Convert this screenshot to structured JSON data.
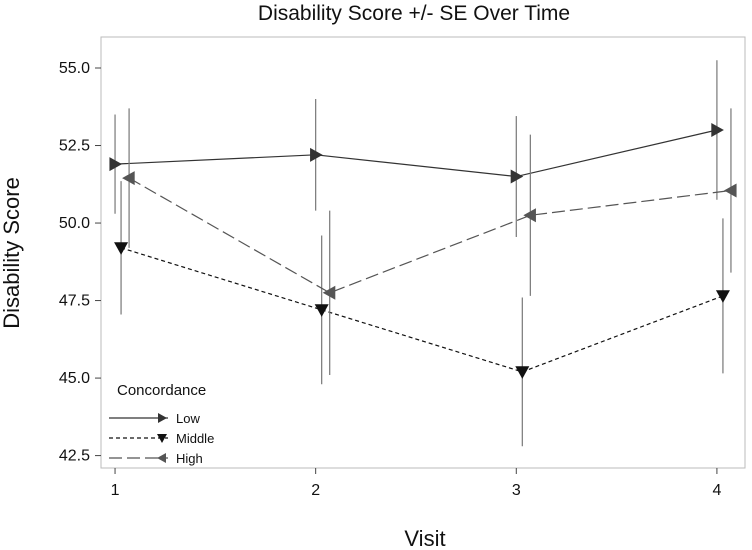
{
  "chart_data": {
    "type": "line",
    "title": "Disability Score +/- SE Over Time",
    "xlabel": "Visit",
    "ylabel": "Disability Score",
    "categories": [
      "1",
      "2",
      "3",
      "4"
    ],
    "x": [
      1,
      2,
      3,
      4
    ],
    "xlim": [
      0.93,
      4.14
    ],
    "ylim": [
      42.1,
      56.0
    ],
    "yticks": [
      42.5,
      45.0,
      47.5,
      50.0,
      52.5,
      55.0
    ],
    "ytick_labels": [
      "42.5",
      "45.0",
      "47.5",
      "50.0",
      "52.5",
      "55.0"
    ],
    "grid": false,
    "legend": {
      "title": "Concordance",
      "position": "bottom-left"
    },
    "series": [
      {
        "name": "Low",
        "marker": "triangle-right",
        "line_style": "solid",
        "color": "#333333",
        "x_offset": 0.0,
        "values": [
          51.9,
          52.2,
          51.5,
          53.0
        ],
        "se": [
          1.6,
          1.8,
          1.95,
          2.25
        ]
      },
      {
        "name": "Middle",
        "marker": "triangle-down",
        "line_style": "dotted",
        "color": "#111111",
        "x_offset": 0.03,
        "values": [
          49.2,
          47.2,
          45.2,
          47.65
        ],
        "se": [
          2.15,
          2.4,
          2.4,
          2.5
        ]
      },
      {
        "name": "High",
        "marker": "triangle-left",
        "line_style": "dashed",
        "color": "#555555",
        "x_offset": 0.07,
        "values": [
          51.45,
          47.75,
          50.25,
          51.05
        ],
        "se": [
          2.25,
          2.65,
          2.6,
          2.65
        ]
      }
    ]
  }
}
